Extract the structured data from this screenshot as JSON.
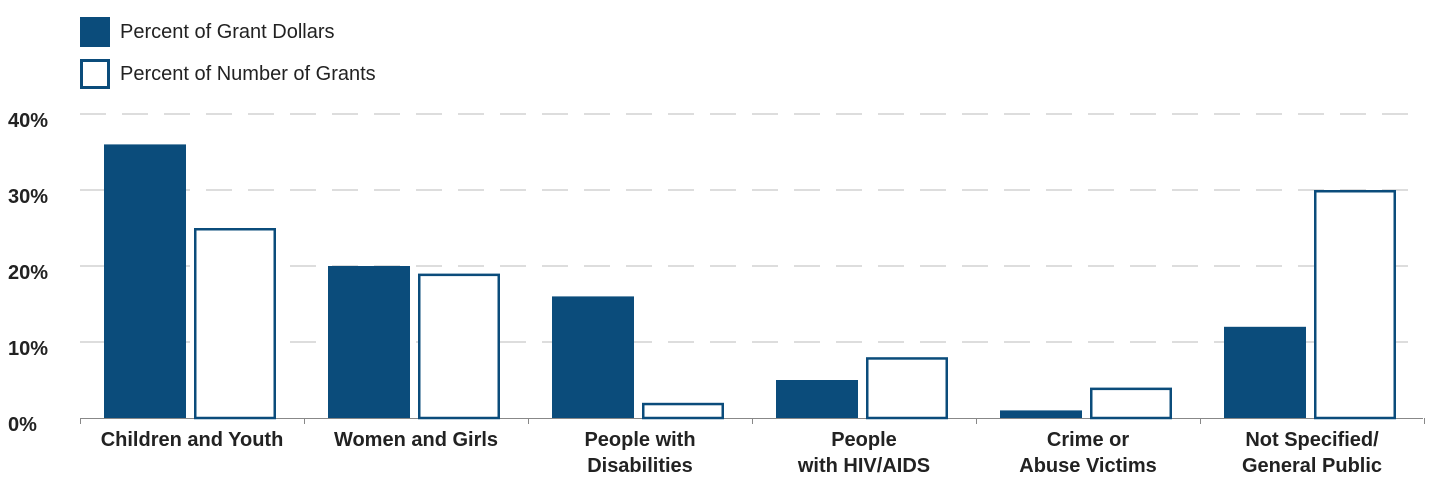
{
  "colors": {
    "primary": "#0b4c7b",
    "grid": "#bbbbbb",
    "axis": "#888888",
    "text": "#222222"
  },
  "legend": {
    "position": "top-left",
    "items": [
      {
        "label": "Percent of Grant Dollars",
        "style": "filled"
      },
      {
        "label": "Percent of Number of Grants",
        "style": "outline"
      }
    ]
  },
  "chart_data": {
    "type": "bar",
    "categories": [
      [
        "Children and Youth"
      ],
      [
        "Women and Girls"
      ],
      [
        "People with",
        "Disabilities"
      ],
      [
        "People",
        "with HIV/AIDS"
      ],
      [
        "Crime or",
        "Abuse Victims"
      ],
      [
        "Not Specified/",
        "General Public"
      ]
    ],
    "series": [
      {
        "name": "Percent of Grant Dollars",
        "values": [
          36,
          20,
          16,
          5,
          1,
          12
        ]
      },
      {
        "name": "Percent of Number of Grants",
        "values": [
          25,
          19,
          2,
          8,
          4,
          30
        ]
      }
    ],
    "ylim": [
      0,
      40
    ],
    "yticks": [
      0,
      10,
      20,
      30,
      40
    ],
    "ytick_labels": [
      "0%",
      "10%",
      "20%",
      "30%",
      "40%"
    ],
    "grid": true,
    "grid_style": "dashed"
  }
}
